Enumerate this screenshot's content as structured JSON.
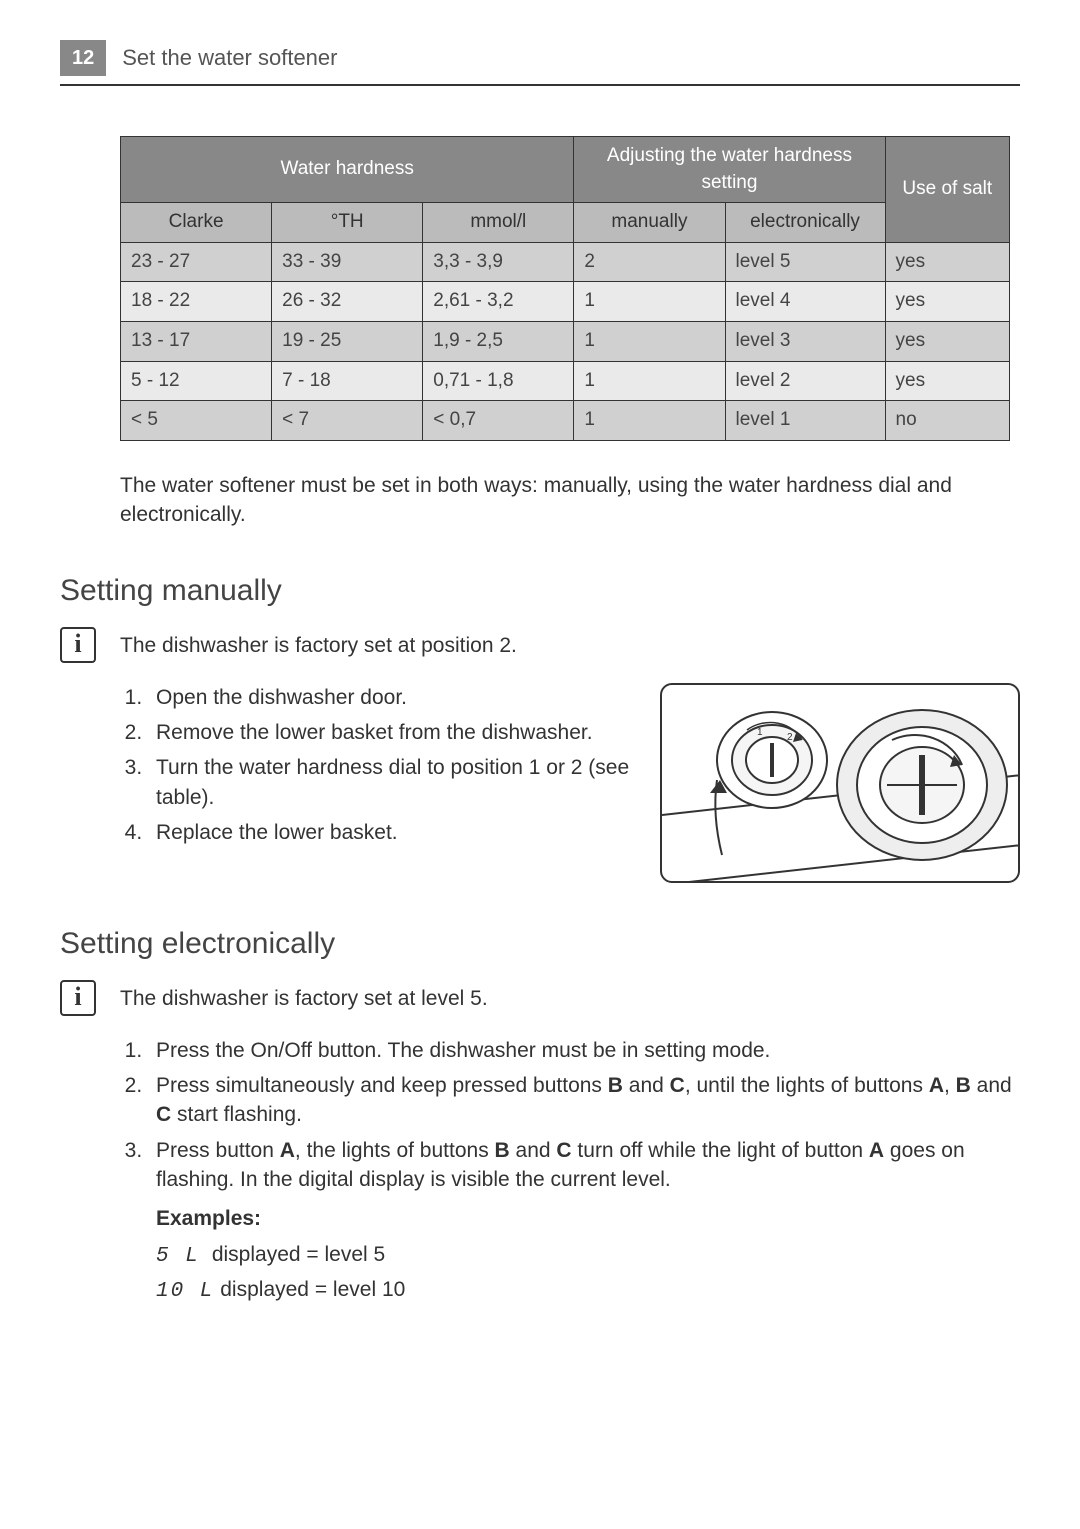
{
  "header": {
    "page_number": "12",
    "title": "Set the water softener"
  },
  "table": {
    "header_row1": {
      "water_hardness": "Water hardness",
      "adjusting": "Adjusting the water hardness setting",
      "use_of_salt": "Use of salt"
    },
    "header_row2": {
      "clarke": "Clarke",
      "th": "°TH",
      "mmol": "mmol/l",
      "manually": "manually",
      "electronically": "electronically"
    },
    "rows": [
      {
        "clarke": "23 - 27",
        "th": "33 - 39",
        "mmol": "3,3 - 3,9",
        "manually": "2",
        "electronically": "level 5",
        "salt": "yes"
      },
      {
        "clarke": "18 - 22",
        "th": "26 - 32",
        "mmol": "2,61 - 3,2",
        "manually": "1",
        "electronically": "level 4",
        "salt": "yes"
      },
      {
        "clarke": "13 - 17",
        "th": "19 - 25",
        "mmol": "1,9 - 2,5",
        "manually": "1",
        "electronically": "level 3",
        "salt": "yes"
      },
      {
        "clarke": "5 - 12",
        "th": "7 - 18",
        "mmol": "0,71 - 1,8",
        "manually": "1",
        "electronically": "level 2",
        "salt": "yes"
      },
      {
        "clarke": "< 5",
        "th": "< 7",
        "mmol": "< 0,7",
        "manually": "1",
        "electronically": "level 1",
        "salt": "no"
      }
    ],
    "col_widths": [
      "17%",
      "17%",
      "17%",
      "17%",
      "18%",
      "14%"
    ]
  },
  "note": "The water softener must be set in both ways: manually, using the water hardness dial and electronically.",
  "section_manual": {
    "heading": "Setting manually",
    "info": "The dishwasher is factory set at position 2.",
    "steps": [
      "Open the dishwasher door.",
      "Remove the lower basket from the dishwasher.",
      "Turn the water hardness dial to posi­tion 1 or 2 (see table).",
      "Replace the lower basket."
    ]
  },
  "section_electronic": {
    "heading": "Setting electronically",
    "info": "The dishwasher is factory set at level 5.",
    "steps": [
      {
        "pre": "Press the On/Off button. The dishwasher must be in setting mode."
      },
      {
        "pre": "Press simultaneously and keep pressed buttons ",
        "b1": "B",
        "mid1": " and ",
        "b2": "C",
        "mid2": ", until the lights of buttons ",
        "b3": "A",
        "mid3": ", ",
        "b4": "B",
        "mid4": " and ",
        "b5": "C",
        "post": " start flashing."
      },
      {
        "pre": "Press button ",
        "b1": "A",
        "mid1": ", the lights of buttons ",
        "b2": "B",
        "mid2": " and ",
        "b3": "C",
        "mid3": " turn off while the light of button ",
        "b4": "A",
        "post": " goes on flashing. In the digital display is visible the current level."
      }
    ],
    "examples_label": "Examples:",
    "examples": [
      {
        "code": "5 L",
        "text": " displayed = level 5"
      },
      {
        "code": "10 L",
        "text": " displayed = level 10"
      }
    ]
  },
  "icons": {
    "info": "i"
  },
  "colors": {
    "header_bg": "#888888",
    "subheader_bg": "#bbbbbb",
    "row_odd": "#d0d0d0",
    "row_even": "#eaeaea",
    "text": "#333333",
    "border": "#333333"
  }
}
